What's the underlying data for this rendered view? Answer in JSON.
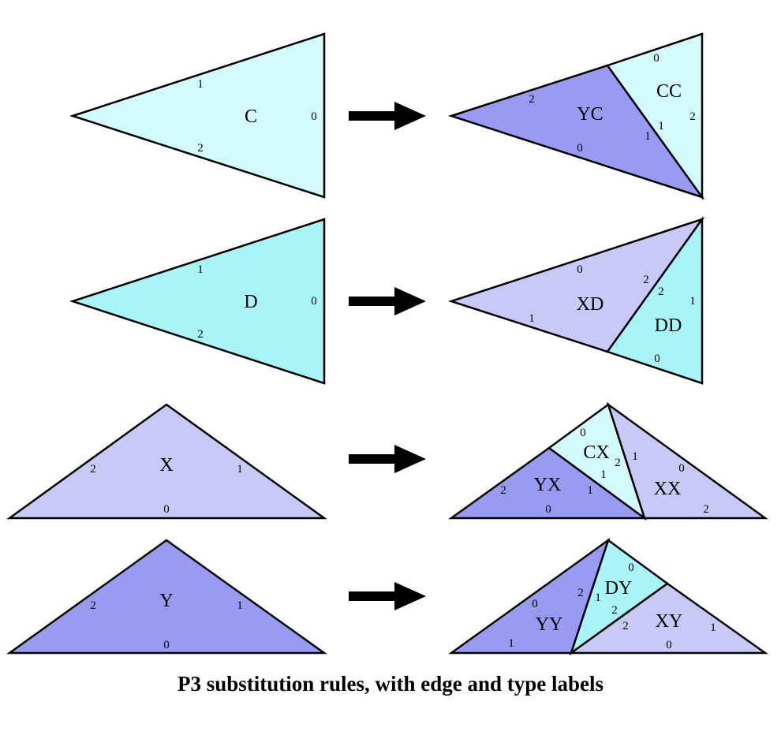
{
  "caption": "P3 substitution rules, with edge and type labels",
  "colors": {
    "C": "#d4fbfb",
    "D": "#a8f4f6",
    "X": "#c9c9f7",
    "Y": "#999bf3",
    "stroke": "#000000",
    "arrow": "#000000"
  },
  "rules": [
    {
      "source": {
        "type": "C",
        "edges": [
          "0",
          "1",
          "2"
        ]
      },
      "result": [
        {
          "label": "YC",
          "type": "Y",
          "edges": [
            "2",
            "0",
            "1"
          ]
        },
        {
          "label": "CC",
          "type": "C",
          "edges": [
            "0",
            "2",
            "1"
          ]
        }
      ]
    },
    {
      "source": {
        "type": "D",
        "edges": [
          "0",
          "1",
          "2"
        ]
      },
      "result": [
        {
          "label": "XD",
          "type": "X",
          "edges": [
            "0",
            "1",
            "2"
          ]
        },
        {
          "label": "DD",
          "type": "D",
          "edges": [
            "2",
            "1",
            "0"
          ]
        }
      ]
    },
    {
      "source": {
        "type": "X",
        "edges": [
          "2",
          "1",
          "0"
        ]
      },
      "result": [
        {
          "label": "YX",
          "type": "Y",
          "edges": [
            "2",
            "1",
            "0"
          ]
        },
        {
          "label": "CX",
          "type": "C",
          "edges": [
            "0",
            "2",
            "1"
          ]
        },
        {
          "label": "XX",
          "type": "X",
          "edges": [
            "1",
            "0",
            "2"
          ]
        }
      ]
    },
    {
      "source": {
        "type": "Y",
        "edges": [
          "2",
          "1",
          "0"
        ]
      },
      "result": [
        {
          "label": "YY",
          "type": "Y",
          "edges": [
            "0",
            "2",
            "1"
          ]
        },
        {
          "label": "DY",
          "type": "D",
          "edges": [
            "1",
            "0",
            "2"
          ]
        },
        {
          "label": "XY",
          "type": "X",
          "edges": [
            "2",
            "1",
            "0"
          ]
        }
      ]
    }
  ]
}
